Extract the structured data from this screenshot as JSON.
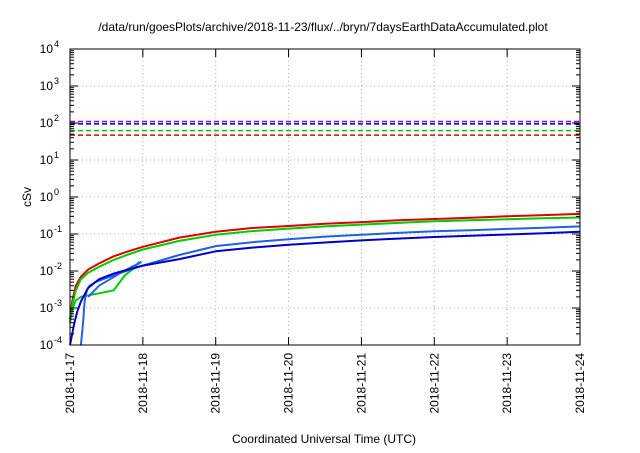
{
  "chart_data": {
    "type": "line",
    "title": "/data/run/goesPlots/archive/2018-11-23/flux/../bryn/7daysEarthDataAccumulated.plot",
    "xlabel": "Coordinated Universal Time (UTC)",
    "ylabel": "cSv",
    "y_scale": "log",
    "ylim": [
      0.0001,
      10000
    ],
    "xlim": [
      "2018-11-17",
      "2018-11-24"
    ],
    "x_ticks": [
      "2018-11-17",
      "2018-11-18",
      "2018-11-19",
      "2018-11-20",
      "2018-11-21",
      "2018-11-22",
      "2018-11-23",
      "2018-11-24"
    ],
    "y_ticks": [
      {
        "base": "10",
        "exp": "-4",
        "value": 0.0001
      },
      {
        "base": "10",
        "exp": "-3",
        "value": 0.001
      },
      {
        "base": "10",
        "exp": "-2",
        "value": 0.01
      },
      {
        "base": "10",
        "exp": "-1",
        "value": 0.1
      },
      {
        "base": "10",
        "exp": "0",
        "value": 1
      },
      {
        "base": "10",
        "exp": "1",
        "value": 10
      },
      {
        "base": "10",
        "exp": "2",
        "value": 100
      },
      {
        "base": "10",
        "exp": "3",
        "value": 1000
      },
      {
        "base": "10",
        "exp": "4",
        "value": 10000
      }
    ],
    "grid": true,
    "thresholds": [
      {
        "color": "#9400d3",
        "value": 110,
        "style": "dashed"
      },
      {
        "color": "#0000cc",
        "value": 95,
        "style": "dashed"
      },
      {
        "color": "#00cc00",
        "value": 62,
        "style": "dashed"
      },
      {
        "color": "#e00000",
        "value": 47,
        "style": "dashed"
      }
    ],
    "series": [
      {
        "color": "#e00000",
        "x": [
          0.0,
          0.03,
          0.08,
          0.15,
          0.25,
          0.4,
          0.6,
          0.8,
          1.0,
          1.5,
          2.0,
          2.5,
          3.0,
          3.5,
          4.0,
          4.5,
          5.0,
          5.5,
          6.0,
          6.5,
          7.0
        ],
        "y": [
          0.0005,
          0.0015,
          0.004,
          0.007,
          0.011,
          0.016,
          0.025,
          0.034,
          0.045,
          0.08,
          0.115,
          0.145,
          0.165,
          0.19,
          0.21,
          0.235,
          0.255,
          0.275,
          0.3,
          0.325,
          0.35
        ]
      },
      {
        "color": "#00cc00",
        "x": [
          0.0,
          0.03,
          0.08,
          0.15,
          0.25,
          0.4,
          0.6,
          0.8,
          1.0,
          1.5,
          2.0,
          2.5,
          3.0,
          3.5,
          4.0,
          4.5,
          5.0,
          5.5,
          6.0,
          6.5,
          7.0
        ],
        "y": [
          0.0004,
          0.0012,
          0.003,
          0.006,
          0.009,
          0.013,
          0.02,
          0.028,
          0.038,
          0.065,
          0.095,
          0.12,
          0.14,
          0.16,
          0.18,
          0.2,
          0.22,
          0.235,
          0.25,
          0.265,
          0.28
        ]
      },
      {
        "color": "#00cc00",
        "x": [
          0.0,
          0.03,
          0.08,
          0.15,
          0.25,
          0.4,
          0.6,
          0.75,
          0.88,
          0.95
        ],
        "y": [
          0.0004,
          0.0009,
          0.0016,
          0.002,
          0.0022,
          0.0025,
          0.003,
          0.0075,
          0.012,
          0.018
        ]
      },
      {
        "color": "#2060e8",
        "x": [
          0.15,
          0.18,
          0.2,
          0.23,
          0.27,
          0.35,
          0.5,
          0.7,
          1.0,
          1.5,
          2.0,
          2.5,
          3.0,
          3.5,
          4.0,
          4.5,
          5.0,
          5.5,
          6.0,
          6.5,
          7.0
        ],
        "y": [
          0.0001,
          0.0004,
          0.0015,
          0.003,
          0.004,
          0.005,
          0.0065,
          0.009,
          0.014,
          0.027,
          0.047,
          0.06,
          0.072,
          0.085,
          0.095,
          0.107,
          0.118,
          0.127,
          0.137,
          0.148,
          0.16
        ]
      },
      {
        "color": "#2060e8",
        "x": [
          0.25,
          0.4,
          0.55,
          0.7,
          0.85,
          0.95,
          0.98
        ],
        "y": [
          0.002,
          0.004,
          0.006,
          0.009,
          0.013,
          0.016,
          0.018
        ]
      },
      {
        "color": "#0000cc",
        "x": [
          0.0,
          0.03,
          0.06,
          0.1,
          0.15,
          0.25,
          0.4,
          0.6,
          0.8,
          1.0,
          1.5,
          2.0,
          2.5,
          3.0,
          3.5,
          4.0,
          4.5,
          5.0,
          5.5,
          6.0,
          6.5,
          7.0
        ],
        "y": [
          0.0001,
          0.0002,
          0.0004,
          0.0008,
          0.0015,
          0.0035,
          0.006,
          0.0085,
          0.011,
          0.014,
          0.021,
          0.034,
          0.043,
          0.051,
          0.059,
          0.067,
          0.075,
          0.083,
          0.09,
          0.097,
          0.105,
          0.115
        ]
      }
    ]
  }
}
